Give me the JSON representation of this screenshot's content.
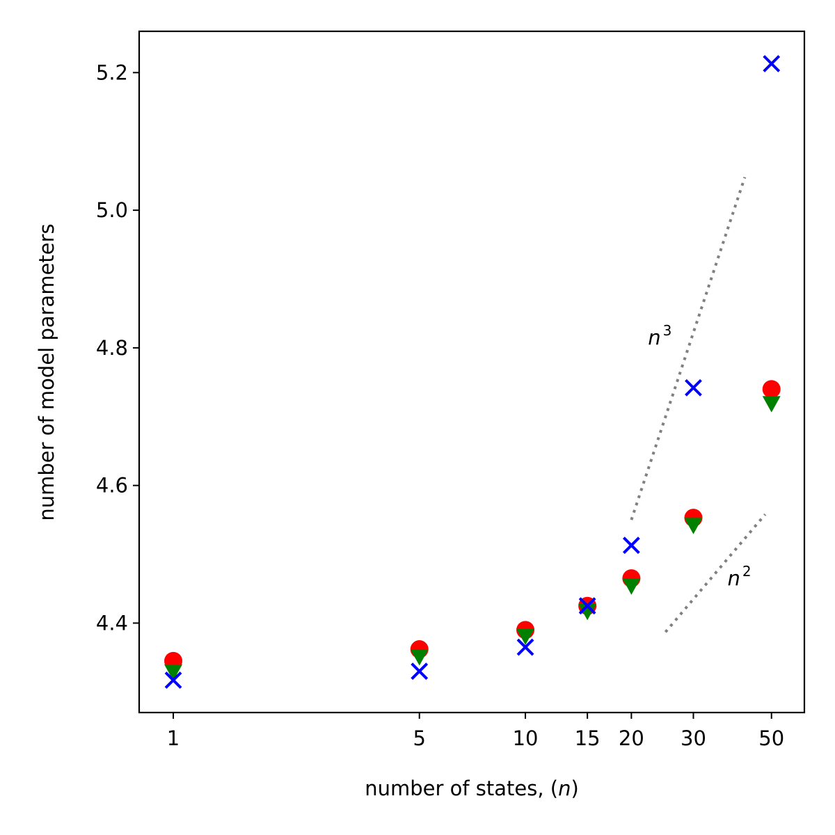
{
  "chart_data": {
    "type": "scatter",
    "xlabel_text": "number of states, (",
    "xlabel_var": "n",
    "xlabel_close": ")",
    "ylabel": "number of model parameters",
    "xscale": "log",
    "xlim": [
      0.8,
      62
    ],
    "ylim": [
      4.27,
      5.26
    ],
    "xticks": [
      1,
      5,
      10,
      15,
      20,
      30,
      50
    ],
    "xtick_labels": [
      "1",
      "5",
      "10",
      "15",
      "20",
      "30",
      "50"
    ],
    "yticks": [
      4.4,
      4.6,
      4.8,
      5.0,
      5.2
    ],
    "ytick_labels": [
      "4.4",
      "4.6",
      "4.8",
      "5.0",
      "5.2"
    ],
    "grid": false,
    "series": [
      {
        "marker": "circle",
        "color": "#ff0000",
        "x": [
          1,
          5,
          10,
          15,
          20,
          30,
          50
        ],
        "y": [
          4.345,
          4.362,
          4.39,
          4.425,
          4.465,
          4.553,
          4.74
        ]
      },
      {
        "marker": "triangle-down",
        "color": "#008000",
        "x": [
          1,
          5,
          10,
          15,
          20,
          30,
          50
        ],
        "y": [
          4.33,
          4.352,
          4.382,
          4.418,
          4.455,
          4.543,
          4.72
        ]
      },
      {
        "marker": "x",
        "color": "#0000ff",
        "x": [
          1,
          5,
          10,
          15,
          20,
          30,
          50
        ],
        "y": [
          4.317,
          4.33,
          4.365,
          4.425,
          4.513,
          4.742,
          5.213
        ]
      }
    ],
    "reference_lines": [
      {
        "style": "dotted",
        "color": "#808080",
        "label_base": "n",
        "label_exp": "3",
        "x": [
          20,
          42
        ],
        "y": [
          4.55,
          5.048
        ],
        "label_pos": [
          22.3,
          4.805
        ]
      },
      {
        "style": "dotted",
        "color": "#808080",
        "label_base": "n",
        "label_exp": "2",
        "x": [
          25,
          48
        ],
        "y": [
          4.387,
          4.558
        ],
        "label_pos": [
          37.5,
          4.455
        ]
      }
    ]
  }
}
